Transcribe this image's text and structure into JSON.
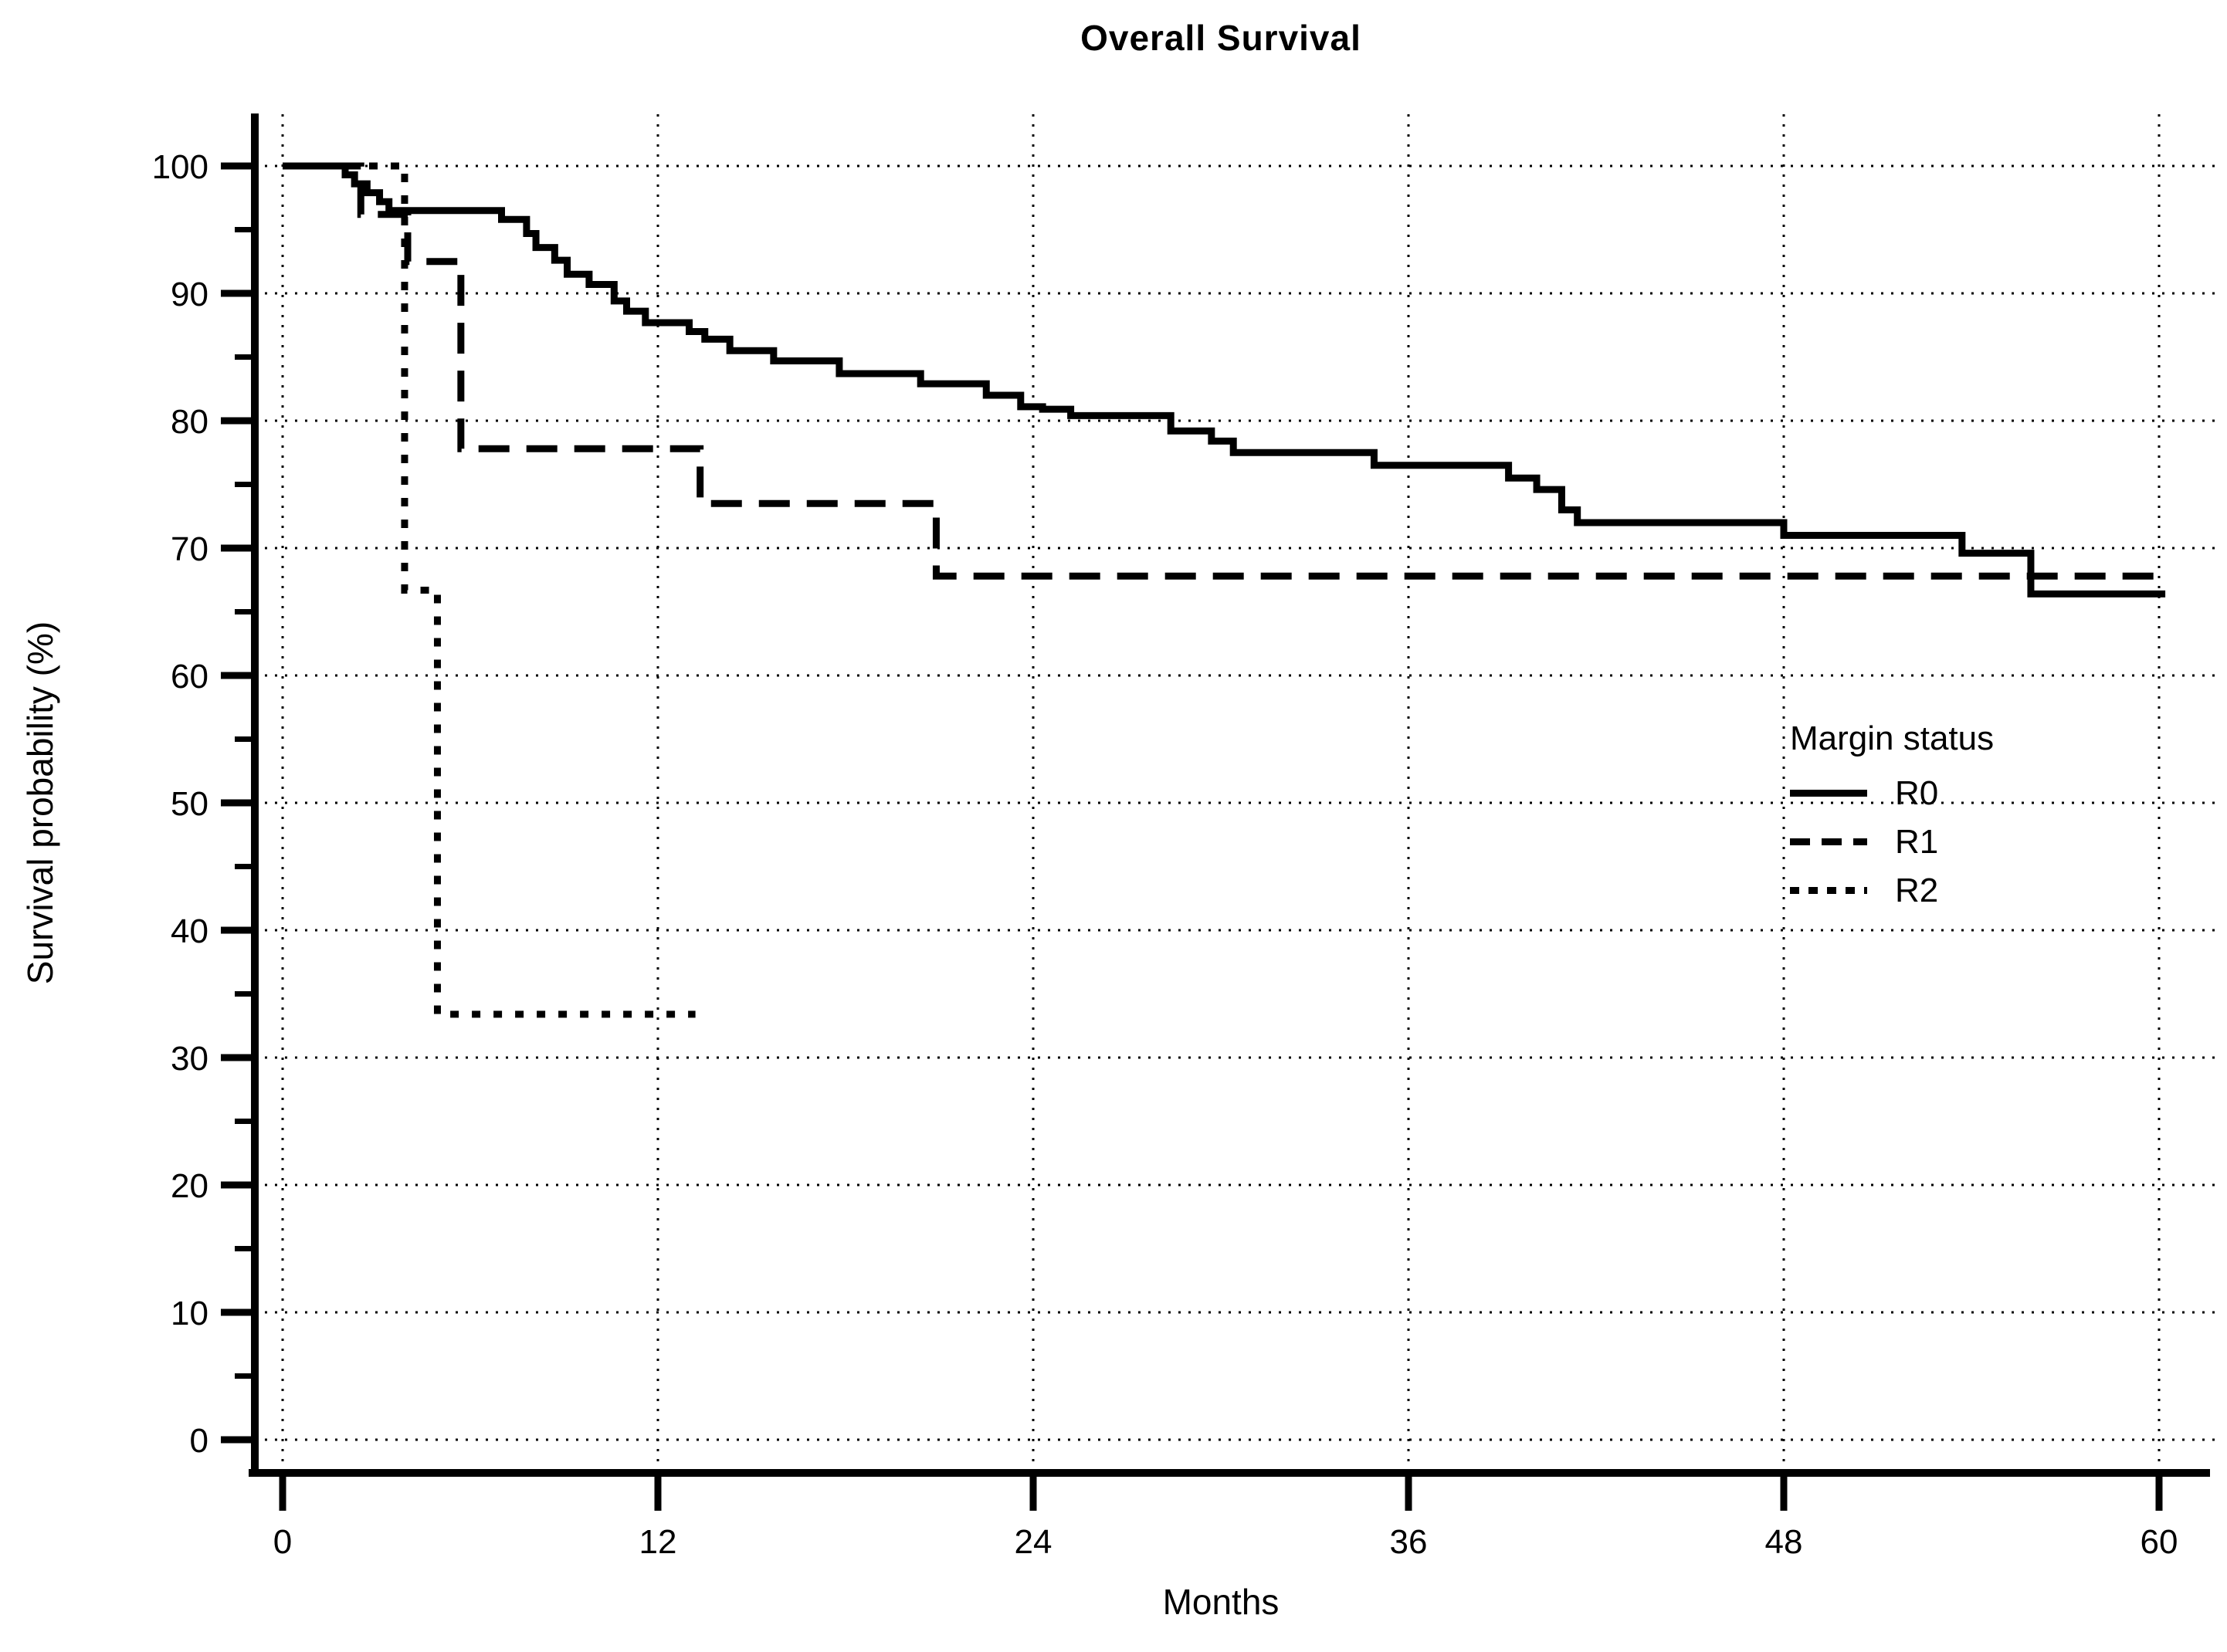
{
  "chart_data": {
    "type": "line",
    "subtype": "kaplan-meier-step",
    "title": "Overall Survival",
    "xlabel": "Months",
    "ylabel": "Survival probability (%)",
    "xlim": [
      0,
      60
    ],
    "ylim": [
      0,
      100
    ],
    "x_ticks": [
      0,
      12,
      24,
      36,
      48,
      60
    ],
    "y_ticks": [
      0,
      10,
      20,
      30,
      40,
      50,
      60,
      70,
      80,
      90,
      100
    ],
    "y_minor_ticks": [
      5,
      15,
      25,
      35,
      45,
      55,
      65,
      75,
      85,
      95
    ],
    "grid": "dotted major grid on both axes",
    "line_color": "#000000",
    "background_color": "#ffffff",
    "legend": {
      "title": "Margin status",
      "position": "right-middle",
      "items": [
        {
          "label": "R0",
          "line": "solid"
        },
        {
          "label": "R1",
          "line": "dashed"
        },
        {
          "label": "R2",
          "line": "dotted"
        }
      ]
    },
    "series": [
      {
        "name": "R0",
        "line": "solid",
        "end_month": 60.2,
        "points": [
          [
            0,
            100
          ],
          [
            2.0,
            99.3
          ],
          [
            2.3,
            98.6
          ],
          [
            2.7,
            97.9
          ],
          [
            3.1,
            97.2
          ],
          [
            3.4,
            96.5
          ],
          [
            7.0,
            95.8
          ],
          [
            7.8,
            94.7
          ],
          [
            8.1,
            93.6
          ],
          [
            8.7,
            92.6
          ],
          [
            9.1,
            91.5
          ],
          [
            9.8,
            90.7
          ],
          [
            10.6,
            89.4
          ],
          [
            11.0,
            88.6
          ],
          [
            11.6,
            87.7
          ],
          [
            13.0,
            87.0
          ],
          [
            13.5,
            86.4
          ],
          [
            14.3,
            85.5
          ],
          [
            15.7,
            84.7
          ],
          [
            17.8,
            83.7
          ],
          [
            20.4,
            82.9
          ],
          [
            22.5,
            82.0
          ],
          [
            23.6,
            81.1
          ],
          [
            24.3,
            80.9
          ],
          [
            25.2,
            80.4
          ],
          [
            28.4,
            79.2
          ],
          [
            29.7,
            78.4
          ],
          [
            30.4,
            77.5
          ],
          [
            34.9,
            76.5
          ],
          [
            39.2,
            75.5
          ],
          [
            40.1,
            74.6
          ],
          [
            40.9,
            73.0
          ],
          [
            41.4,
            72.0
          ],
          [
            48.0,
            71.0
          ],
          [
            53.7,
            69.6
          ],
          [
            55.9,
            66.4
          ]
        ]
      },
      {
        "name": "R1",
        "line": "dashed",
        "end_month": 60.2,
        "points": [
          [
            0,
            100
          ],
          [
            2.5,
            96.2
          ],
          [
            4.0,
            92.5
          ],
          [
            5.7,
            77.8
          ],
          [
            13.35,
            73.5
          ],
          [
            20.9,
            67.8
          ]
        ]
      },
      {
        "name": "R2",
        "line": "dotted",
        "end_month": 13.2,
        "points": [
          [
            0,
            100
          ],
          [
            3.9,
            66.7
          ],
          [
            4.95,
            33.4
          ]
        ]
      }
    ]
  }
}
